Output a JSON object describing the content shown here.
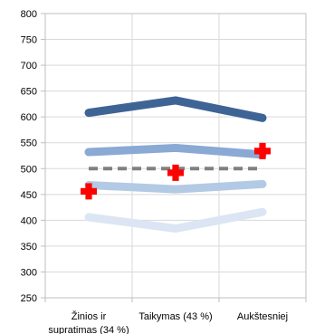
{
  "chart_data": {
    "type": "line",
    "categories": [
      "Žinios ir supratimas (34 %)",
      "Taikymas (43 %)",
      "Aukštesniej"
    ],
    "ylim": [
      250,
      800
    ],
    "yticks": [
      250,
      300,
      350,
      400,
      450,
      500,
      550,
      600,
      650,
      700,
      750,
      800
    ],
    "grid": true,
    "series": [
      {
        "values": [
          608,
          632,
          598
        ],
        "color": "#3d6494",
        "style": "solid"
      },
      {
        "values": [
          532,
          540,
          527
        ],
        "color": "#8aa9d4",
        "style": "solid"
      },
      {
        "values": [
          500,
          500,
          500
        ],
        "color": "#808080",
        "style": "dashed"
      },
      {
        "values": [
          468,
          460,
          470
        ],
        "color": "#b3cae4",
        "style": "solid"
      },
      {
        "values": [
          406,
          384,
          416
        ],
        "color": "#dbe5f3",
        "style": "solid"
      },
      {
        "values": [
          456,
          492,
          534
        ],
        "color": "#ff0000",
        "style": "markers",
        "marker": "cross"
      }
    ]
  }
}
